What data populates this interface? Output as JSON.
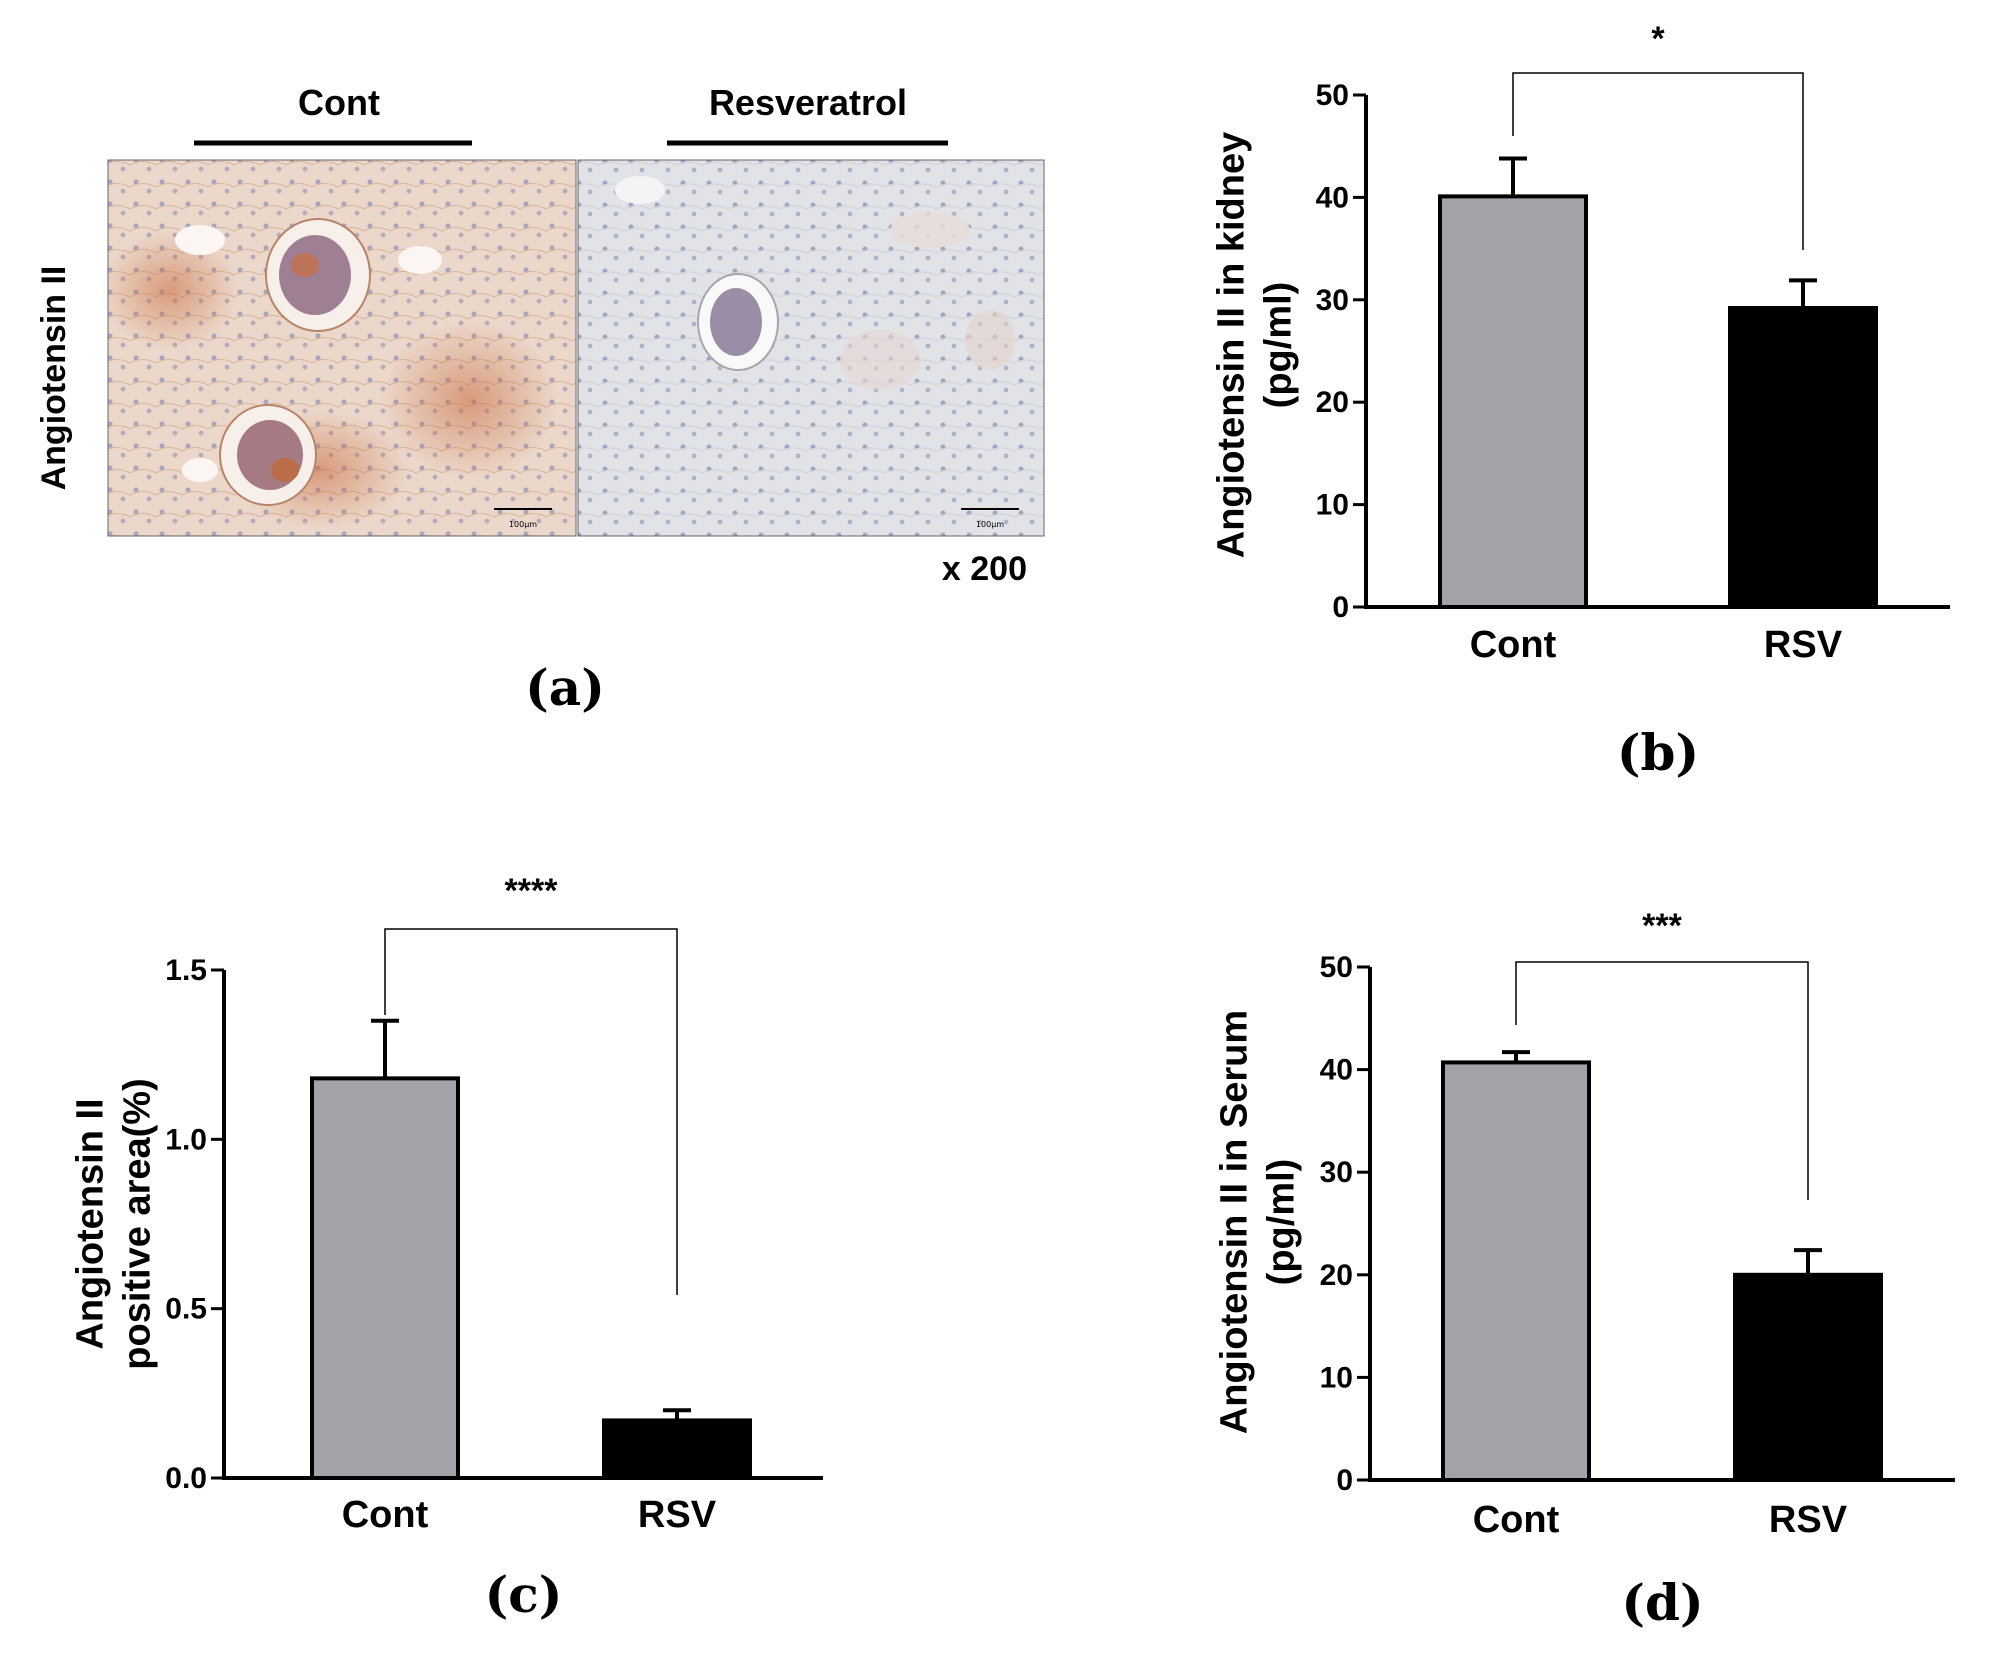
{
  "panel_a": {
    "label": "(a)",
    "group_labels": [
      "Cont",
      "Resveratrol"
    ],
    "row_label": "Angiotensin II",
    "magnification": "x 200",
    "scale_bar_label": "100μm"
  },
  "chart_data": [
    {
      "id": "b",
      "type": "bar",
      "panel_label": "(b)",
      "categories": [
        "Cont",
        "RSV"
      ],
      "values": [
        40.1,
        29.2
      ],
      "errors": [
        3.7,
        2.7
      ],
      "colors": [
        "#a2a2a8",
        "#000000"
      ],
      "title": "",
      "xlabel": "",
      "ylabel_lines": [
        "Angiotensin II  in kidney",
        "(pg/ml)"
      ],
      "ylim": [
        0,
        50
      ],
      "yticks": [
        0,
        10,
        20,
        30,
        40,
        50
      ],
      "ytick_labels": [
        "0",
        "10",
        "20",
        "30",
        "40",
        "50"
      ],
      "significance": "*"
    },
    {
      "id": "c",
      "type": "bar",
      "panel_label": "(c)",
      "categories": [
        "Cont",
        "RSV"
      ],
      "values": [
        1.18,
        0.17
      ],
      "errors": [
        0.17,
        0.03
      ],
      "colors": [
        "#a2a2a8",
        "#000000"
      ],
      "title": "",
      "xlabel": "",
      "ylabel_lines": [
        "Angiotensin II",
        "positive area(%)"
      ],
      "ylim": [
        0,
        1.5
      ],
      "yticks": [
        0,
        0.5,
        1.0,
        1.5
      ],
      "ytick_labels": [
        "0.0",
        "0.5",
        "1.0",
        "1.5"
      ],
      "significance": "****"
    },
    {
      "id": "d",
      "type": "bar",
      "panel_label": "(d)",
      "categories": [
        "Cont",
        "RSV"
      ],
      "values": [
        40.7,
        20.0
      ],
      "errors": [
        1.0,
        2.4
      ],
      "colors": [
        "#a2a2a8",
        "#000000"
      ],
      "title": "",
      "xlabel": "",
      "ylabel_lines": [
        "Angiotensin II  in Serum",
        "(pg/ml)"
      ],
      "ylim": [
        0,
        50
      ],
      "yticks": [
        0,
        10,
        20,
        30,
        40,
        50
      ],
      "ytick_labels": [
        "0",
        "10",
        "20",
        "30",
        "40",
        "50"
      ],
      "significance": "***"
    }
  ]
}
